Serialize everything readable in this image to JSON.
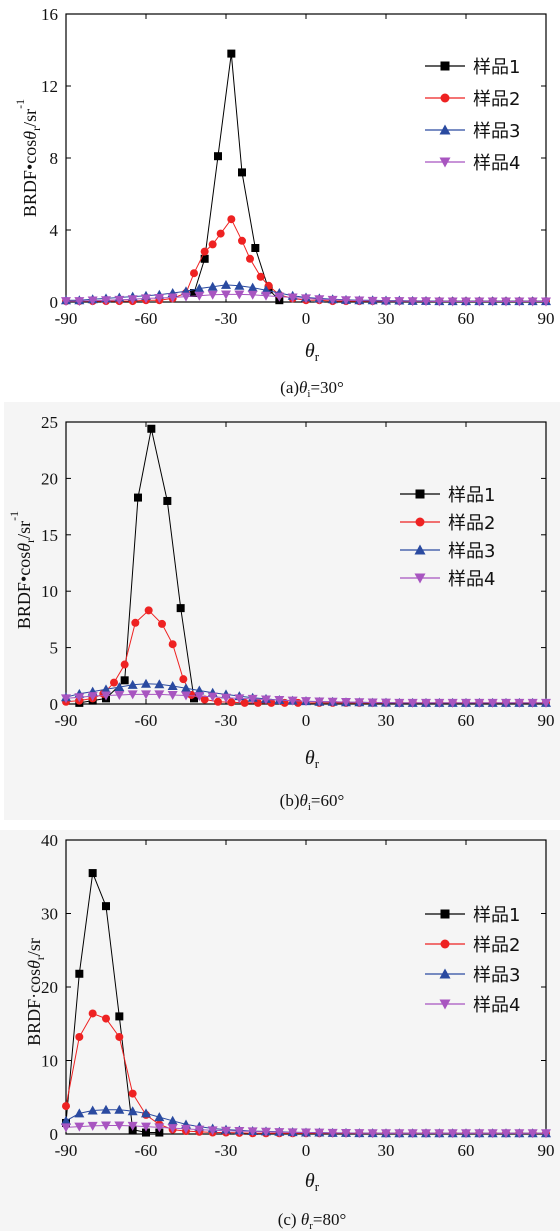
{
  "chart_data": [
    {
      "type": "line",
      "caption": "(a)θi=30°",
      "ylabel": "BRDF•cosθr/sr⁻¹",
      "xlabel": "θr",
      "xlim": [
        -90,
        90
      ],
      "ylim": [
        0,
        16
      ],
      "xticks": [
        -90,
        -60,
        -30,
        0,
        30,
        60,
        90
      ],
      "yticks": [
        0,
        4,
        8,
        12,
        16
      ],
      "legend_position": "top-right",
      "series": [
        {
          "name": "样品1",
          "color": "#000000",
          "marker": "square",
          "x": [
            -42,
            -38,
            -33,
            -28,
            -24,
            -19,
            -14,
            -10
          ],
          "y": [
            0.5,
            2.4,
            8.1,
            13.8,
            7.2,
            3.0,
            0.7,
            0.1
          ]
        },
        {
          "name": "样品2",
          "color": "#ee2222",
          "marker": "circle",
          "x": [
            -90,
            -85,
            -80,
            -75,
            -70,
            -65,
            -60,
            -55,
            -50,
            -45,
            -42,
            -38,
            -35,
            -32,
            -28,
            -24,
            -21,
            -17,
            -14,
            -10,
            -5,
            0,
            5,
            10,
            15,
            20,
            25,
            30,
            35,
            40,
            45,
            50,
            55,
            60,
            65,
            70,
            75,
            80,
            85,
            90
          ],
          "y": [
            0.05,
            0.05,
            0.05,
            0.05,
            0.05,
            0.05,
            0.1,
            0.1,
            0.2,
            0.5,
            1.6,
            2.8,
            3.2,
            3.8,
            4.6,
            3.4,
            2.4,
            1.4,
            0.9,
            0.4,
            0.2,
            0.1,
            0.1,
            0.05,
            0.05,
            0.05,
            0.05,
            0.05,
            0.05,
            0.05,
            0.05,
            0.05,
            0.05,
            0.05,
            0.05,
            0.05,
            0.05,
            0.05,
            0.05,
            0.05
          ]
        },
        {
          "name": "样品3",
          "color": "#2a4aa0",
          "marker": "triangle-up",
          "x": [
            -90,
            -85,
            -80,
            -75,
            -70,
            -65,
            -60,
            -55,
            -50,
            -45,
            -40,
            -35,
            -30,
            -25,
            -20,
            -15,
            -10,
            -5,
            0,
            5,
            10,
            15,
            20,
            25,
            30,
            35,
            40,
            45,
            50,
            55,
            60,
            65,
            70,
            75,
            80,
            85,
            90
          ],
          "y": [
            0.1,
            0.1,
            0.15,
            0.2,
            0.25,
            0.3,
            0.35,
            0.4,
            0.5,
            0.6,
            0.75,
            0.85,
            0.95,
            0.9,
            0.8,
            0.65,
            0.5,
            0.35,
            0.25,
            0.2,
            0.15,
            0.12,
            0.1,
            0.1,
            0.08,
            0.08,
            0.06,
            0.06,
            0.05,
            0.05,
            0.05,
            0.05,
            0.05,
            0.05,
            0.05,
            0.05,
            0.05
          ]
        },
        {
          "name": "样品4",
          "color": "#a855c0",
          "marker": "triangle-down",
          "x": [
            -90,
            -85,
            -80,
            -75,
            -70,
            -65,
            -60,
            -55,
            -50,
            -45,
            -40,
            -35,
            -30,
            -25,
            -20,
            -15,
            -10,
            -5,
            0,
            5,
            10,
            15,
            20,
            25,
            30,
            35,
            40,
            45,
            50,
            55,
            60,
            65,
            70,
            75,
            80,
            85,
            90
          ],
          "y": [
            0.05,
            0.05,
            0.08,
            0.1,
            0.12,
            0.15,
            0.2,
            0.22,
            0.25,
            0.3,
            0.35,
            0.4,
            0.42,
            0.42,
            0.4,
            0.35,
            0.3,
            0.25,
            0.2,
            0.15,
            0.12,
            0.1,
            0.08,
            0.06,
            0.05,
            0.05,
            0.04,
            0.04,
            0.03,
            0.03,
            0.03,
            0.03,
            0.03,
            0.03,
            0.03,
            0.03,
            0.03
          ]
        }
      ]
    },
    {
      "type": "line",
      "caption": "(b)θi=60°",
      "ylabel": "BRDF•cosθr/sr⁻¹",
      "xlabel": "θr",
      "xlim": [
        -90,
        90
      ],
      "ylim": [
        0,
        25
      ],
      "xticks": [
        -90,
        -60,
        -30,
        0,
        30,
        60,
        90
      ],
      "yticks": [
        0,
        5,
        10,
        15,
        20,
        25
      ],
      "legend_position": "top-right",
      "series": [
        {
          "name": "样品1",
          "color": "#000000",
          "marker": "square",
          "x": [
            -85,
            -80,
            -75,
            -68,
            -63,
            -58,
            -52,
            -47,
            -42
          ],
          "y": [
            0.1,
            0.3,
            0.5,
            2.1,
            18.3,
            24.4,
            18.0,
            8.5,
            0.5
          ]
        },
        {
          "name": "样品2",
          "color": "#ee2222",
          "marker": "circle",
          "x": [
            -90,
            -85,
            -80,
            -76,
            -72,
            -68,
            -64,
            -59,
            -54,
            -50,
            -46,
            -43,
            -38,
            -33,
            -28,
            -23,
            -18,
            -13,
            -8,
            -3,
            5,
            10,
            15,
            20,
            25,
            30,
            35,
            40,
            45,
            50,
            55,
            60,
            65,
            70,
            75,
            80,
            85,
            90
          ],
          "y": [
            0.2,
            0.3,
            0.5,
            0.9,
            1.9,
            3.5,
            7.2,
            8.3,
            7.1,
            5.3,
            2.2,
            0.8,
            0.4,
            0.2,
            0.15,
            0.1,
            0.1,
            0.1,
            0.1,
            0.1,
            0.1,
            0.1,
            0.1,
            0.1,
            0.1,
            0.1,
            0.1,
            0.1,
            0.1,
            0.1,
            0.1,
            0.1,
            0.1,
            0.1,
            0.1,
            0.1,
            0.1,
            0.1
          ]
        },
        {
          "name": "样品3",
          "color": "#2a4aa0",
          "marker": "triangle-up",
          "x": [
            -90,
            -85,
            -80,
            -75,
            -70,
            -65,
            -60,
            -55,
            -50,
            -45,
            -40,
            -35,
            -30,
            -25,
            -20,
            -15,
            -10,
            -5,
            0,
            5,
            10,
            15,
            20,
            25,
            30,
            35,
            40,
            45,
            50,
            55,
            60,
            65,
            70,
            75,
            80,
            85,
            90
          ],
          "y": [
            0.6,
            0.9,
            1.1,
            1.3,
            1.5,
            1.7,
            1.8,
            1.75,
            1.6,
            1.4,
            1.2,
            1.0,
            0.85,
            0.7,
            0.55,
            0.45,
            0.35,
            0.3,
            0.25,
            0.2,
            0.2,
            0.15,
            0.15,
            0.12,
            0.12,
            0.1,
            0.1,
            0.1,
            0.1,
            0.1,
            0.1,
            0.1,
            0.1,
            0.1,
            0.1,
            0.1,
            0.1
          ]
        },
        {
          "name": "样品4",
          "color": "#a855c0",
          "marker": "triangle-down",
          "x": [
            -90,
            -85,
            -80,
            -75,
            -70,
            -65,
            -60,
            -55,
            -50,
            -45,
            -40,
            -35,
            -30,
            -25,
            -20,
            -15,
            -10,
            -5,
            0,
            5,
            10,
            15,
            20,
            25,
            30,
            35,
            40,
            45,
            50,
            55,
            60,
            65,
            70,
            75,
            80,
            85,
            90
          ],
          "y": [
            0.5,
            0.6,
            0.7,
            0.75,
            0.8,
            0.85,
            0.85,
            0.85,
            0.8,
            0.75,
            0.7,
            0.65,
            0.55,
            0.5,
            0.45,
            0.4,
            0.35,
            0.3,
            0.25,
            0.22,
            0.2,
            0.18,
            0.15,
            0.13,
            0.12,
            0.1,
            0.1,
            0.1,
            0.1,
            0.1,
            0.1,
            0.1,
            0.1,
            0.1,
            0.1,
            0.1,
            0.1
          ]
        }
      ]
    },
    {
      "type": "line",
      "caption": "(c) θr=80°",
      "ylabel": "BRDF·cosθr/sr",
      "xlabel": "θr",
      "xlim": [
        -90,
        90
      ],
      "ylim": [
        0,
        40
      ],
      "xticks": [
        -90,
        -60,
        -30,
        0,
        30,
        60,
        90
      ],
      "yticks": [
        0,
        10,
        20,
        30,
        40
      ],
      "legend_position": "top-right",
      "series": [
        {
          "name": "样品1",
          "color": "#000000",
          "marker": "square",
          "x": [
            -90,
            -85,
            -80,
            -75,
            -70,
            -65,
            -60,
            -55
          ],
          "y": [
            1.5,
            21.8,
            35.5,
            31.0,
            16.0,
            0.6,
            0.2,
            0.2
          ]
        },
        {
          "name": "样品2",
          "color": "#ee2222",
          "marker": "circle",
          "x": [
            -90,
            -85,
            -80,
            -75,
            -70,
            -65,
            -60,
            -55,
            -50,
            -45,
            -40,
            -35,
            -30,
            -25,
            -20,
            -15,
            -10,
            -5,
            0,
            5,
            10,
            15,
            20,
            25,
            30,
            35,
            40,
            45,
            50,
            55,
            60,
            65,
            70,
            75,
            80,
            85,
            90
          ],
          "y": [
            3.8,
            13.2,
            16.4,
            15.7,
            13.2,
            5.5,
            2.6,
            1.3,
            0.6,
            0.4,
            0.3,
            0.2,
            0.2,
            0.15,
            0.1,
            0.1,
            0.1,
            0.1,
            0.1,
            0.1,
            0.1,
            0.1,
            0.1,
            0.1,
            0.1,
            0.1,
            0.1,
            0.1,
            0.1,
            0.1,
            0.1,
            0.1,
            0.1,
            0.1,
            0.1,
            0.1,
            0.1
          ]
        },
        {
          "name": "样品3",
          "color": "#2a4aa0",
          "marker": "triangle-up",
          "x": [
            -90,
            -85,
            -80,
            -75,
            -70,
            -65,
            -60,
            -55,
            -50,
            -45,
            -40,
            -35,
            -30,
            -25,
            -20,
            -15,
            -10,
            -5,
            0,
            5,
            10,
            15,
            20,
            25,
            30,
            35,
            40,
            45,
            50,
            55,
            60,
            65,
            70,
            75,
            80,
            85,
            90
          ],
          "y": [
            1.8,
            2.8,
            3.2,
            3.3,
            3.3,
            3.1,
            2.8,
            2.3,
            1.8,
            1.3,
            1.0,
            0.75,
            0.6,
            0.5,
            0.4,
            0.35,
            0.3,
            0.25,
            0.2,
            0.2,
            0.15,
            0.15,
            0.12,
            0.12,
            0.1,
            0.1,
            0.1,
            0.1,
            0.1,
            0.1,
            0.1,
            0.1,
            0.1,
            0.1,
            0.1,
            0.1,
            0.1
          ]
        },
        {
          "name": "样品4",
          "color": "#a855c0",
          "marker": "triangle-down",
          "x": [
            -90,
            -85,
            -80,
            -75,
            -70,
            -65,
            -60,
            -55,
            -50,
            -45,
            -40,
            -35,
            -30,
            -25,
            -20,
            -15,
            -10,
            -5,
            0,
            5,
            10,
            15,
            20,
            25,
            30,
            35,
            40,
            45,
            50,
            55,
            60,
            65,
            70,
            75,
            80,
            85,
            90
          ],
          "y": [
            0.9,
            1.0,
            1.1,
            1.15,
            1.15,
            1.1,
            1.0,
            0.9,
            0.8,
            0.7,
            0.6,
            0.5,
            0.45,
            0.4,
            0.35,
            0.3,
            0.25,
            0.22,
            0.2,
            0.18,
            0.15,
            0.13,
            0.12,
            0.1,
            0.1,
            0.1,
            0.1,
            0.1,
            0.1,
            0.1,
            0.1,
            0.1,
            0.1,
            0.1,
            0.1,
            0.1,
            0.1
          ]
        }
      ]
    }
  ]
}
